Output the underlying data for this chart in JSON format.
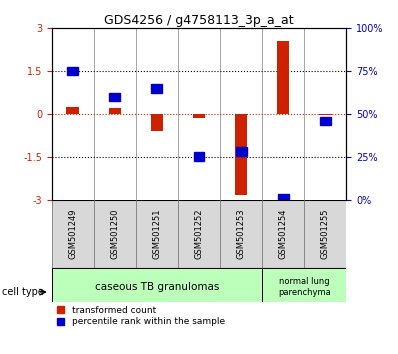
{
  "title": "GDS4256 / g4758113_3p_a_at",
  "samples": [
    "GSM501249",
    "GSM501250",
    "GSM501251",
    "GSM501252",
    "GSM501253",
    "GSM501254",
    "GSM501255"
  ],
  "red_values": [
    0.25,
    0.2,
    -0.6,
    -0.15,
    -2.85,
    2.55,
    -0.05
  ],
  "blue_percentiles": [
    75,
    60,
    65,
    25,
    28,
    1,
    46
  ],
  "red_color": "#cc2200",
  "blue_color": "#0000cc",
  "ylim_left": [
    -3,
    3
  ],
  "ylim_right": [
    0,
    100
  ],
  "yticks_left": [
    -3,
    -1.5,
    0,
    1.5,
    3
  ],
  "yticks_right": [
    0,
    25,
    50,
    75,
    100
  ],
  "ytick_labels_left": [
    "-3",
    "-1.5",
    "0",
    "1.5",
    "3"
  ],
  "ytick_labels_right": [
    "0%",
    "25%",
    "50%",
    "75%",
    "100%"
  ],
  "cell_type_groups": [
    {
      "label": "caseous TB granulomas",
      "n_samples": 5,
      "color": "#bbffbb"
    },
    {
      "label": "normal lung\nparenchyma",
      "n_samples": 2,
      "color": "#bbffbb"
    }
  ],
  "legend_red": "transformed count",
  "legend_blue": "percentile rank within the sample",
  "cell_type_label": "cell type",
  "red_bar_width": 0.3,
  "blue_marker_size": 60
}
